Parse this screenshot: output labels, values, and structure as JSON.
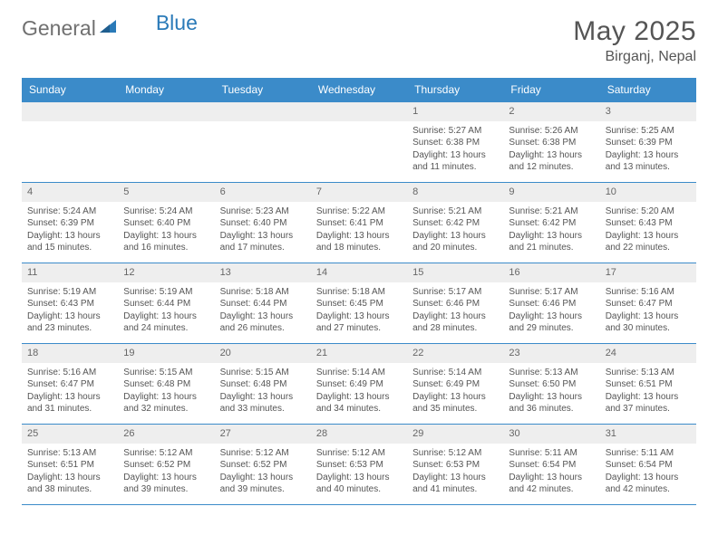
{
  "brand": {
    "text1": "General",
    "text2": "Blue"
  },
  "title": "May 2025",
  "location": "Birganj, Nepal",
  "colors": {
    "header_bg": "#3b8bc9",
    "header_text": "#ffffff",
    "daynum_bg": "#eeeeee",
    "rule": "#3b8bc9",
    "body_text": "#555555",
    "brand_gray": "#707070",
    "brand_blue": "#2a7ab8",
    "page_bg": "#ffffff"
  },
  "daynames": [
    "Sunday",
    "Monday",
    "Tuesday",
    "Wednesday",
    "Thursday",
    "Friday",
    "Saturday"
  ],
  "weeks": [
    [
      {
        "n": "",
        "sr": "",
        "ss": "",
        "dl": ""
      },
      {
        "n": "",
        "sr": "",
        "ss": "",
        "dl": ""
      },
      {
        "n": "",
        "sr": "",
        "ss": "",
        "dl": ""
      },
      {
        "n": "",
        "sr": "",
        "ss": "",
        "dl": ""
      },
      {
        "n": "1",
        "sr": "Sunrise: 5:27 AM",
        "ss": "Sunset: 6:38 PM",
        "dl": "Daylight: 13 hours and 11 minutes."
      },
      {
        "n": "2",
        "sr": "Sunrise: 5:26 AM",
        "ss": "Sunset: 6:38 PM",
        "dl": "Daylight: 13 hours and 12 minutes."
      },
      {
        "n": "3",
        "sr": "Sunrise: 5:25 AM",
        "ss": "Sunset: 6:39 PM",
        "dl": "Daylight: 13 hours and 13 minutes."
      }
    ],
    [
      {
        "n": "4",
        "sr": "Sunrise: 5:24 AM",
        "ss": "Sunset: 6:39 PM",
        "dl": "Daylight: 13 hours and 15 minutes."
      },
      {
        "n": "5",
        "sr": "Sunrise: 5:24 AM",
        "ss": "Sunset: 6:40 PM",
        "dl": "Daylight: 13 hours and 16 minutes."
      },
      {
        "n": "6",
        "sr": "Sunrise: 5:23 AM",
        "ss": "Sunset: 6:40 PM",
        "dl": "Daylight: 13 hours and 17 minutes."
      },
      {
        "n": "7",
        "sr": "Sunrise: 5:22 AM",
        "ss": "Sunset: 6:41 PM",
        "dl": "Daylight: 13 hours and 18 minutes."
      },
      {
        "n": "8",
        "sr": "Sunrise: 5:21 AM",
        "ss": "Sunset: 6:42 PM",
        "dl": "Daylight: 13 hours and 20 minutes."
      },
      {
        "n": "9",
        "sr": "Sunrise: 5:21 AM",
        "ss": "Sunset: 6:42 PM",
        "dl": "Daylight: 13 hours and 21 minutes."
      },
      {
        "n": "10",
        "sr": "Sunrise: 5:20 AM",
        "ss": "Sunset: 6:43 PM",
        "dl": "Daylight: 13 hours and 22 minutes."
      }
    ],
    [
      {
        "n": "11",
        "sr": "Sunrise: 5:19 AM",
        "ss": "Sunset: 6:43 PM",
        "dl": "Daylight: 13 hours and 23 minutes."
      },
      {
        "n": "12",
        "sr": "Sunrise: 5:19 AM",
        "ss": "Sunset: 6:44 PM",
        "dl": "Daylight: 13 hours and 24 minutes."
      },
      {
        "n": "13",
        "sr": "Sunrise: 5:18 AM",
        "ss": "Sunset: 6:44 PM",
        "dl": "Daylight: 13 hours and 26 minutes."
      },
      {
        "n": "14",
        "sr": "Sunrise: 5:18 AM",
        "ss": "Sunset: 6:45 PM",
        "dl": "Daylight: 13 hours and 27 minutes."
      },
      {
        "n": "15",
        "sr": "Sunrise: 5:17 AM",
        "ss": "Sunset: 6:46 PM",
        "dl": "Daylight: 13 hours and 28 minutes."
      },
      {
        "n": "16",
        "sr": "Sunrise: 5:17 AM",
        "ss": "Sunset: 6:46 PM",
        "dl": "Daylight: 13 hours and 29 minutes."
      },
      {
        "n": "17",
        "sr": "Sunrise: 5:16 AM",
        "ss": "Sunset: 6:47 PM",
        "dl": "Daylight: 13 hours and 30 minutes."
      }
    ],
    [
      {
        "n": "18",
        "sr": "Sunrise: 5:16 AM",
        "ss": "Sunset: 6:47 PM",
        "dl": "Daylight: 13 hours and 31 minutes."
      },
      {
        "n": "19",
        "sr": "Sunrise: 5:15 AM",
        "ss": "Sunset: 6:48 PM",
        "dl": "Daylight: 13 hours and 32 minutes."
      },
      {
        "n": "20",
        "sr": "Sunrise: 5:15 AM",
        "ss": "Sunset: 6:48 PM",
        "dl": "Daylight: 13 hours and 33 minutes."
      },
      {
        "n": "21",
        "sr": "Sunrise: 5:14 AM",
        "ss": "Sunset: 6:49 PM",
        "dl": "Daylight: 13 hours and 34 minutes."
      },
      {
        "n": "22",
        "sr": "Sunrise: 5:14 AM",
        "ss": "Sunset: 6:49 PM",
        "dl": "Daylight: 13 hours and 35 minutes."
      },
      {
        "n": "23",
        "sr": "Sunrise: 5:13 AM",
        "ss": "Sunset: 6:50 PM",
        "dl": "Daylight: 13 hours and 36 minutes."
      },
      {
        "n": "24",
        "sr": "Sunrise: 5:13 AM",
        "ss": "Sunset: 6:51 PM",
        "dl": "Daylight: 13 hours and 37 minutes."
      }
    ],
    [
      {
        "n": "25",
        "sr": "Sunrise: 5:13 AM",
        "ss": "Sunset: 6:51 PM",
        "dl": "Daylight: 13 hours and 38 minutes."
      },
      {
        "n": "26",
        "sr": "Sunrise: 5:12 AM",
        "ss": "Sunset: 6:52 PM",
        "dl": "Daylight: 13 hours and 39 minutes."
      },
      {
        "n": "27",
        "sr": "Sunrise: 5:12 AM",
        "ss": "Sunset: 6:52 PM",
        "dl": "Daylight: 13 hours and 39 minutes."
      },
      {
        "n": "28",
        "sr": "Sunrise: 5:12 AM",
        "ss": "Sunset: 6:53 PM",
        "dl": "Daylight: 13 hours and 40 minutes."
      },
      {
        "n": "29",
        "sr": "Sunrise: 5:12 AM",
        "ss": "Sunset: 6:53 PM",
        "dl": "Daylight: 13 hours and 41 minutes."
      },
      {
        "n": "30",
        "sr": "Sunrise: 5:11 AM",
        "ss": "Sunset: 6:54 PM",
        "dl": "Daylight: 13 hours and 42 minutes."
      },
      {
        "n": "31",
        "sr": "Sunrise: 5:11 AM",
        "ss": "Sunset: 6:54 PM",
        "dl": "Daylight: 13 hours and 42 minutes."
      }
    ]
  ]
}
